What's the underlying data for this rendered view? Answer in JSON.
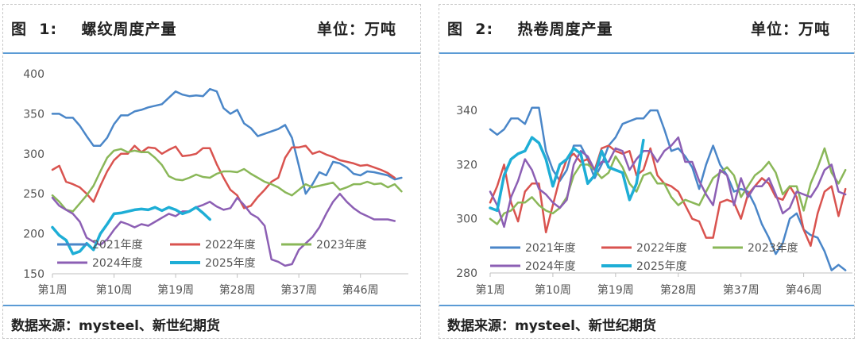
{
  "panels": [
    {
      "figure_label": "图  1:    螺纹周度产量",
      "unit_label": "单位：万吨",
      "source": "数据来源：mysteel、新世纪期货"
    },
    {
      "figure_label": "图  2:    热卷周度产量",
      "unit_label": "单位：万吨",
      "source": "数据来源：mysteel、新世纪期货"
    }
  ],
  "chart_data": [
    {
      "type": "line",
      "title": "螺纹周度产量",
      "xlabel": "",
      "ylabel": "",
      "x": [
        1,
        2,
        3,
        4,
        5,
        6,
        7,
        8,
        9,
        10,
        11,
        12,
        13,
        14,
        15,
        16,
        17,
        18,
        19,
        20,
        21,
        22,
        23,
        24,
        25,
        26,
        27,
        28,
        29,
        30,
        31,
        32,
        33,
        34,
        35,
        36,
        37,
        38,
        39,
        40,
        41,
        42,
        43,
        44,
        45,
        46,
        47,
        48,
        49,
        50,
        51,
        52
      ],
      "x_ticks": [
        "第1周",
        "第10周",
        "第19周",
        "第28周",
        "第37周",
        "第46周"
      ],
      "x_tick_values": [
        1,
        10,
        19,
        28,
        37,
        46
      ],
      "xlim": [
        1,
        53
      ],
      "ylim": [
        150,
        400
      ],
      "y_ticks": [
        150,
        200,
        250,
        300,
        350,
        400
      ],
      "grid": false,
      "legend_position": "bottom-left",
      "series": [
        {
          "name": "2021年度",
          "color": "#4a86c8",
          "values": [
            350,
            350,
            345,
            345,
            335,
            322,
            310,
            310,
            320,
            337,
            348,
            348,
            353,
            355,
            358,
            360,
            362,
            370,
            378,
            374,
            372,
            373,
            372,
            381,
            378,
            357,
            350,
            355,
            338,
            332,
            322,
            325,
            328,
            331,
            336,
            320,
            285,
            250,
            262,
            277,
            273,
            290,
            288,
            283,
            275,
            273,
            278,
            277,
            275,
            273,
            268,
            270
          ]
        },
        {
          "name": "2022年度",
          "color": "#d9534f",
          "values": [
            280,
            285,
            265,
            262,
            258,
            250,
            240,
            260,
            278,
            292,
            300,
            300,
            310,
            302,
            308,
            307,
            300,
            305,
            309,
            297,
            298,
            300,
            307,
            307,
            287,
            270,
            255,
            248,
            232,
            235,
            246,
            255,
            265,
            270,
            295,
            308,
            308,
            310,
            300,
            303,
            299,
            296,
            292,
            290,
            288,
            285,
            286,
            283,
            280,
            276,
            270,
            null
          ]
        },
        {
          "name": "2023年度",
          "color": "#8ab758",
          "values": [
            248,
            240,
            230,
            228,
            238,
            248,
            260,
            278,
            295,
            304,
            306,
            302,
            304,
            302,
            302,
            295,
            286,
            272,
            268,
            267,
            270,
            274,
            271,
            270,
            275,
            278,
            278,
            277,
            281,
            275,
            270,
            265,
            262,
            258,
            252,
            248,
            255,
            262,
            258,
            260,
            262,
            264,
            255,
            258,
            262,
            262,
            265,
            262,
            263,
            258,
            262,
            253
          ]
        },
        {
          "name": "2024年度",
          "color": "#8c5fb4",
          "values": [
            245,
            235,
            230,
            225,
            215,
            195,
            190,
            186,
            193,
            205,
            215,
            212,
            208,
            212,
            210,
            215,
            220,
            225,
            222,
            228,
            228,
            233,
            236,
            240,
            234,
            230,
            232,
            245,
            236,
            225,
            220,
            210,
            168,
            165,
            160,
            162,
            180,
            188,
            196,
            208,
            225,
            240,
            250,
            240,
            232,
            226,
            222,
            218,
            218,
            218,
            216,
            null
          ]
        },
        {
          "name": "2025年度",
          "color": "#1eaed6",
          "values": [
            208,
            198,
            192,
            175,
            178,
            188,
            180,
            200,
            212,
            225,
            226,
            228,
            230,
            231,
            230,
            233,
            229,
            233,
            230,
            225,
            228,
            233,
            226,
            218,
            null,
            null,
            null,
            null,
            null,
            null,
            null,
            null,
            null,
            null,
            null,
            null,
            null,
            null,
            null,
            null,
            null,
            null,
            null,
            null,
            null,
            null,
            null,
            null,
            null,
            null,
            null,
            null
          ]
        }
      ]
    },
    {
      "type": "line",
      "title": "热卷周度产量",
      "xlabel": "",
      "ylabel": "",
      "x": [
        1,
        2,
        3,
        4,
        5,
        6,
        7,
        8,
        9,
        10,
        11,
        12,
        13,
        14,
        15,
        16,
        17,
        18,
        19,
        20,
        21,
        22,
        23,
        24,
        25,
        26,
        27,
        28,
        29,
        30,
        31,
        32,
        33,
        34,
        35,
        36,
        37,
        38,
        39,
        40,
        41,
        42,
        43,
        44,
        45,
        46,
        47,
        48,
        49,
        50,
        51,
        52
      ],
      "x_ticks": [
        "第1周",
        "第10周",
        "第19周",
        "第28周",
        "第37周",
        "第46周"
      ],
      "x_tick_values": [
        1,
        10,
        19,
        28,
        37,
        46
      ],
      "xlim": [
        1,
        53
      ],
      "ylim": [
        280,
        345
      ],
      "y_ticks": [
        280,
        300,
        320,
        340
      ],
      "grid": false,
      "legend_position": "bottom-left",
      "series": [
        {
          "name": "2021年度",
          "color": "#4a86c8",
          "values": [
            333,
            331,
            333,
            337,
            337,
            335,
            341,
            341,
            325,
            318,
            314,
            318,
            327,
            327,
            322,
            315,
            320,
            327,
            330,
            335,
            336,
            337,
            337,
            340,
            340,
            333,
            325,
            326,
            323,
            319,
            311,
            320,
            327,
            320,
            316,
            310,
            311,
            310,
            305,
            298,
            293,
            287,
            291,
            300,
            302,
            296,
            294,
            293,
            288,
            281,
            283,
            281
          ]
        },
        {
          "name": "2022年度",
          "color": "#d9534f",
          "values": [
            306,
            312,
            320,
            306,
            299,
            310,
            313,
            313,
            295,
            305,
            315,
            322,
            324,
            321,
            322,
            318,
            326,
            327,
            325,
            324,
            325,
            316,
            318,
            326,
            316,
            313,
            312,
            310,
            305,
            300,
            299,
            293,
            293,
            306,
            307,
            306,
            300,
            309,
            312,
            315,
            313,
            308,
            307,
            312,
            308,
            296,
            290,
            302,
            310,
            312,
            301,
            311
          ]
        },
        {
          "name": "2023年度",
          "color": "#8ab758",
          "values": [
            300,
            298,
            302,
            303,
            306,
            306,
            308,
            305,
            303,
            302,
            304,
            308,
            316,
            320,
            320,
            318,
            315,
            317,
            323,
            319,
            313,
            310,
            316,
            317,
            313,
            313,
            308,
            305,
            307,
            306,
            305,
            310,
            315,
            317,
            319,
            316,
            308,
            312,
            316,
            318,
            321,
            317,
            309,
            312,
            312,
            303,
            313,
            319,
            326,
            317,
            313,
            318
          ]
        },
        {
          "name": "2024年度",
          "color": "#8c5fb4",
          "values": [
            310,
            305,
            297,
            308,
            314,
            322,
            318,
            311,
            309,
            306,
            304,
            307,
            320,
            325,
            323,
            318,
            321,
            321,
            326,
            325,
            318,
            322,
            325,
            325,
            321,
            325,
            327,
            330,
            321,
            321,
            314,
            309,
            305,
            318,
            316,
            305,
            315,
            308,
            312,
            312,
            315,
            309,
            302,
            304,
            310,
            309,
            308,
            312,
            318,
            320,
            310,
            309
          ]
        },
        {
          "name": "2025年度",
          "color": "#1eaed6",
          "values": [
            304,
            303,
            316,
            322,
            324,
            325,
            330,
            328,
            322,
            312,
            320,
            322,
            326,
            324,
            313,
            316,
            325,
            319,
            318,
            317,
            307,
            313,
            329,
            null,
            null,
            null,
            null,
            null,
            null,
            null,
            null,
            null,
            null,
            null,
            null,
            null,
            null,
            null,
            null,
            null,
            null,
            null,
            null,
            null,
            null,
            null,
            null,
            null,
            null,
            null,
            null,
            null
          ]
        }
      ]
    }
  ]
}
